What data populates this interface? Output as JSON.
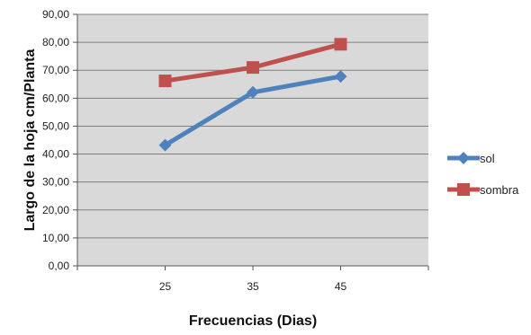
{
  "chart_data": {
    "type": "line",
    "title": "",
    "xlabel": "Frecuencias (Dias)",
    "ylabel": "Largo de la hoja cm/Planta",
    "categories": [
      "25",
      "35",
      "45"
    ],
    "ylim": [
      0,
      90
    ],
    "yticks": [
      "0,00",
      "10,00",
      "20,00",
      "30,00",
      "40,00",
      "50,00",
      "60,00",
      "70,00",
      "80,00",
      "90,00"
    ],
    "grid": true,
    "legend_position": "right",
    "series": [
      {
        "name": "sol",
        "values": [
          43.2,
          62.1,
          67.8
        ],
        "color": "#4F81BD",
        "marker": "diamond"
      },
      {
        "name": "sombra",
        "values": [
          66.2,
          71.0,
          79.3
        ],
        "color": "#C0504D",
        "marker": "square"
      }
    ]
  }
}
